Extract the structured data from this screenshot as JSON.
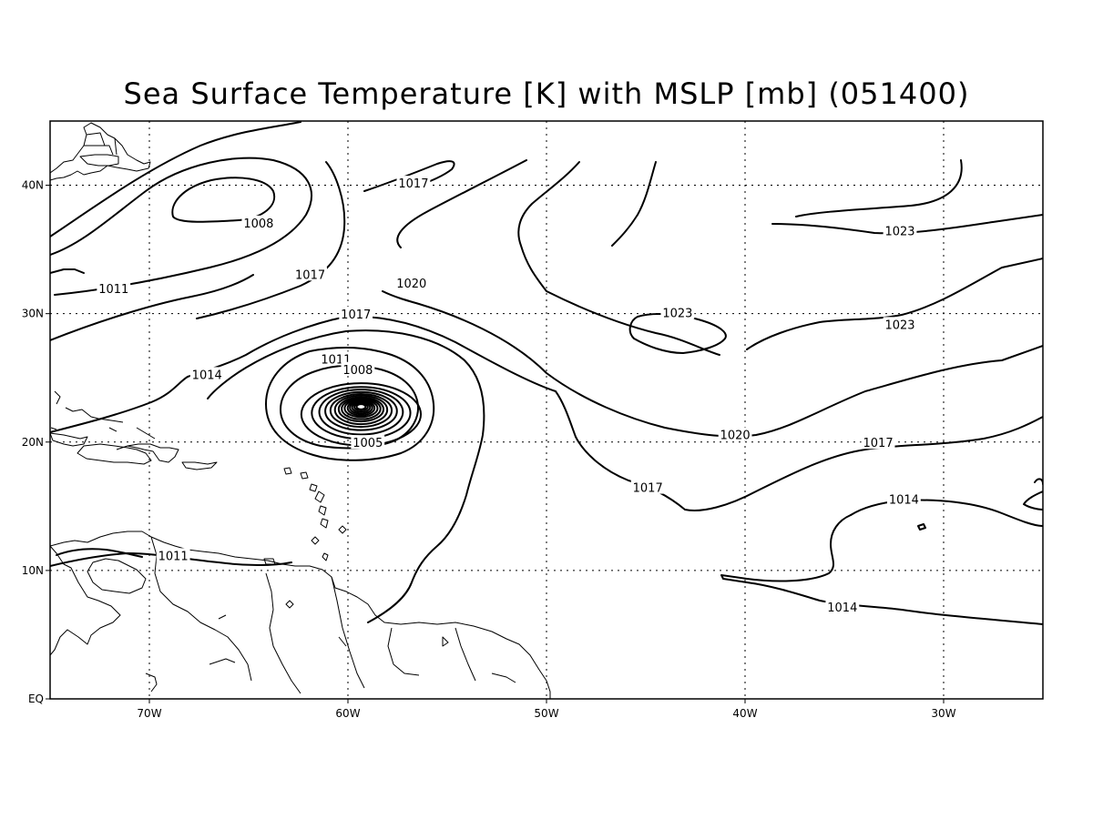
{
  "title": "Sea Surface Temperature [K] with MSLP [mb] (051400)",
  "map": {
    "lon_range": [
      -75,
      -25
    ],
    "lat_range": [
      0,
      45
    ],
    "x_ticks": [
      {
        "lon": -70,
        "label": "70W"
      },
      {
        "lon": -60,
        "label": "60W"
      },
      {
        "lon": -50,
        "label": "50W"
      },
      {
        "lon": -40,
        "label": "40W"
      },
      {
        "lon": -30,
        "label": "30W"
      }
    ],
    "y_ticks": [
      {
        "lat": 0,
        "label": "EQ"
      },
      {
        "lat": 10,
        "label": "10N"
      },
      {
        "lat": 20,
        "label": "20N"
      },
      {
        "lat": 30,
        "label": "30N"
      },
      {
        "lat": 40,
        "label": "40N"
      }
    ],
    "grid": "dotted",
    "contour_field": "MSLP",
    "contour_interval_mb": 3,
    "low_center": {
      "lon": -59.2,
      "lat": 22.8
    }
  },
  "contour_labels": [
    {
      "text": "1017",
      "lon": -56.7,
      "lat": 40.1
    },
    {
      "text": "1008",
      "lon": -64.5,
      "lat": 37.0
    },
    {
      "text": "1011",
      "lon": -71.8,
      "lat": 31.9
    },
    {
      "text": "1017",
      "lon": -61.9,
      "lat": 33.0
    },
    {
      "text": "1020",
      "lon": -56.8,
      "lat": 32.3
    },
    {
      "text": "1017",
      "lon": -59.6,
      "lat": 29.9
    },
    {
      "text": "1023",
      "lon": -32.2,
      "lat": 36.4
    },
    {
      "text": "1023",
      "lon": -43.4,
      "lat": 30.0
    },
    {
      "text": "1023",
      "lon": -32.2,
      "lat": 29.1
    },
    {
      "text": "1011",
      "lon": -60.6,
      "lat": 26.4
    },
    {
      "text": "1008",
      "lon": -59.5,
      "lat": 25.6
    },
    {
      "text": "1014",
      "lon": -67.1,
      "lat": 25.2
    },
    {
      "text": "1005",
      "lon": -59.0,
      "lat": 19.9
    },
    {
      "text": "1020",
      "lon": -40.5,
      "lat": 20.5
    },
    {
      "text": "1017",
      "lon": -33.3,
      "lat": 19.9
    },
    {
      "text": "1017",
      "lon": -44.9,
      "lat": 16.4
    },
    {
      "text": "1014",
      "lon": -32.0,
      "lat": 15.5
    },
    {
      "text": "1011",
      "lon": -68.8,
      "lat": 11.1
    },
    {
      "text": "1014",
      "lon": -35.1,
      "lat": 7.1
    }
  ]
}
